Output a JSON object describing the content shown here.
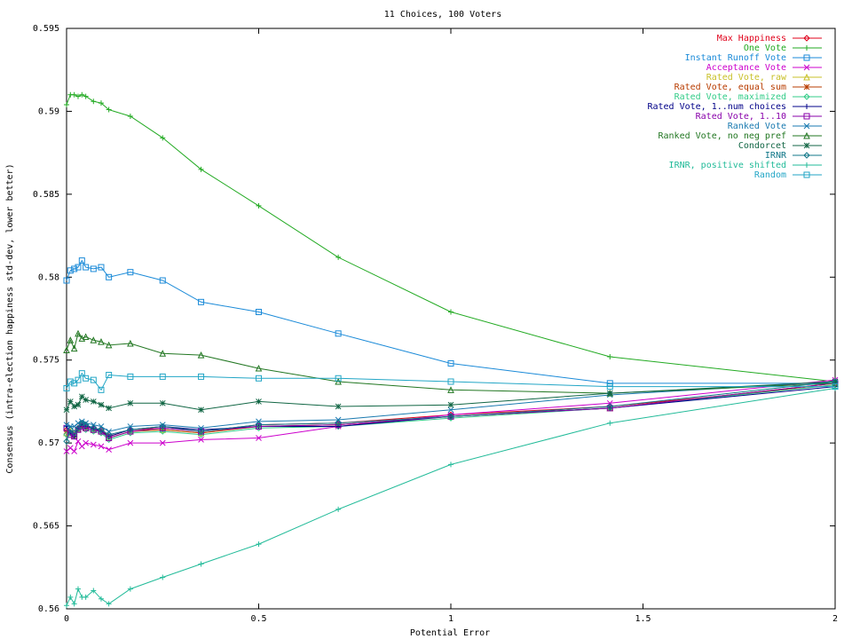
{
  "chart_data": {
    "type": "line",
    "title": "11 Choices, 100 Voters",
    "xlabel": "Potential Error",
    "ylabel": "Consensus (intra-election happiness std-dev, lower better)",
    "xlim": [
      0,
      2
    ],
    "ylim": [
      0.56,
      0.595
    ],
    "x_ticks": [
      0,
      0.5,
      1,
      1.5,
      2
    ],
    "x_tick_labels": [
      "0",
      "0.5",
      "1",
      "1.5",
      "2"
    ],
    "y_ticks": [
      0.56,
      0.565,
      0.57,
      0.575,
      0.58,
      0.585,
      0.59,
      0.595
    ],
    "y_tick_labels": [
      "0.56",
      "0.565",
      "0.57",
      "0.575",
      "0.58",
      "0.585",
      "0.59",
      "0.595"
    ],
    "grid": false,
    "legend_position": "top-right",
    "x": [
      0,
      0.01,
      0.02,
      0.03,
      0.04,
      0.05,
      0.07,
      0.09,
      0.11,
      0.166,
      0.25,
      0.35,
      0.5,
      0.707,
      1.0,
      1.414,
      2.0
    ],
    "series": [
      {
        "name": "Max Happiness",
        "color": "#e0001a",
        "marker": "diamond",
        "values": [
          0.5708,
          0.5706,
          0.5705,
          0.5708,
          0.5711,
          0.571,
          0.5709,
          0.5708,
          0.5704,
          0.5708,
          0.5709,
          0.5707,
          0.5711,
          0.5712,
          0.5717,
          0.5722,
          0.5735
        ]
      },
      {
        "name": "One Vote",
        "color": "#22aa22",
        "marker": "plus",
        "values": [
          0.5904,
          0.591,
          0.591,
          0.5909,
          0.591,
          0.5909,
          0.5906,
          0.5905,
          0.5901,
          0.5897,
          0.5884,
          0.5865,
          0.5843,
          0.5812,
          0.5779,
          0.5752,
          0.5737
        ]
      },
      {
        "name": "Instant Runoff Vote",
        "color": "#1a8ad8",
        "marker": "square",
        "values": [
          0.5798,
          0.5804,
          0.5805,
          0.5806,
          0.581,
          0.5806,
          0.5805,
          0.5806,
          0.58,
          0.5803,
          0.5798,
          0.5785,
          0.5779,
          0.5766,
          0.5748,
          0.5736,
          0.5736
        ]
      },
      {
        "name": "Acceptance Vote",
        "color": "#cc00cc",
        "marker": "x",
        "values": [
          0.5695,
          0.5697,
          0.5695,
          0.5701,
          0.5698,
          0.57,
          0.5699,
          0.5698,
          0.5696,
          0.57,
          0.57,
          0.5702,
          0.5703,
          0.571,
          0.5717,
          0.5724,
          0.5738
        ]
      },
      {
        "name": "Rated Vote, raw",
        "color": "#c8c028",
        "marker": "triangle",
        "values": [
          0.5706,
          0.5707,
          0.5705,
          0.5709,
          0.5711,
          0.5709,
          0.5708,
          0.5707,
          0.5703,
          0.5707,
          0.5708,
          0.5706,
          0.571,
          0.5711,
          0.5716,
          0.5721,
          0.5736
        ]
      },
      {
        "name": "Rated Vote, equal sum",
        "color": "#b83c00",
        "marker": "star",
        "values": [
          0.5707,
          0.5706,
          0.5704,
          0.5708,
          0.571,
          0.5709,
          0.5708,
          0.5707,
          0.5703,
          0.5707,
          0.5708,
          0.5706,
          0.571,
          0.5711,
          0.5716,
          0.5721,
          0.5736
        ]
      },
      {
        "name": "Rated Vote, maximized",
        "color": "#33cc88",
        "marker": "diamond",
        "values": [
          0.5705,
          0.5706,
          0.5704,
          0.5708,
          0.571,
          0.5708,
          0.5707,
          0.5706,
          0.5702,
          0.5706,
          0.5707,
          0.5705,
          0.5709,
          0.571,
          0.5715,
          0.5721,
          0.5735
        ]
      },
      {
        "name": "Rated Vote, 1..num choices",
        "color": "#000088",
        "marker": "plus",
        "values": [
          0.571,
          0.5706,
          0.5704,
          0.5709,
          0.5711,
          0.571,
          0.5709,
          0.5707,
          0.5704,
          0.5708,
          0.571,
          0.5708,
          0.571,
          0.571,
          0.5716,
          0.5721,
          0.5734
        ]
      },
      {
        "name": "Rated Vote, 1..10",
        "color": "#8800aa",
        "marker": "square",
        "values": [
          0.5709,
          0.5705,
          0.5704,
          0.5708,
          0.571,
          0.5709,
          0.5708,
          0.5707,
          0.5703,
          0.5707,
          0.5709,
          0.5707,
          0.571,
          0.5711,
          0.5716,
          0.5721,
          0.5736
        ]
      },
      {
        "name": "Ranked Vote",
        "color": "#1a7ab0",
        "marker": "x",
        "values": [
          0.5711,
          0.571,
          0.571,
          0.5712,
          0.5713,
          0.5712,
          0.5711,
          0.571,
          0.5707,
          0.571,
          0.5711,
          0.5709,
          0.5713,
          0.5714,
          0.572,
          0.5729,
          0.5737
        ]
      },
      {
        "name": "Ranked Vote, no neg pref",
        "color": "#227722",
        "marker": "triangle",
        "values": [
          0.5756,
          0.5762,
          0.5757,
          0.5766,
          0.5763,
          0.5764,
          0.5762,
          0.5761,
          0.5759,
          0.576,
          0.5754,
          0.5753,
          0.5745,
          0.5737,
          0.5732,
          0.573,
          0.5736
        ]
      },
      {
        "name": "Condorcet",
        "color": "#116644",
        "marker": "star",
        "values": [
          0.572,
          0.5725,
          0.5722,
          0.5723,
          0.5728,
          0.5726,
          0.5725,
          0.5723,
          0.5721,
          0.5724,
          0.5724,
          0.572,
          0.5725,
          0.5722,
          0.5723,
          0.573,
          0.5737
        ]
      },
      {
        "name": "IRNR",
        "color": "#117788",
        "marker": "diamond",
        "values": [
          0.5701,
          0.5708,
          0.5706,
          0.5709,
          0.5712,
          0.5711,
          0.5709,
          0.5708,
          0.5705,
          0.5708,
          0.571,
          0.5707,
          0.5711,
          0.5712,
          0.5716,
          0.5722,
          0.5737
        ]
      },
      {
        "name": "IRNR, positive shifted",
        "color": "#22bb99",
        "marker": "plus",
        "values": [
          0.5602,
          0.5607,
          0.5603,
          0.5612,
          0.5607,
          0.5607,
          0.5611,
          0.5606,
          0.5603,
          0.5612,
          0.5619,
          0.5627,
          0.5639,
          0.566,
          0.5687,
          0.5712,
          0.5733
        ]
      },
      {
        "name": "Random",
        "color": "#22a6c6",
        "marker": "square",
        "values": [
          0.5733,
          0.5737,
          0.5736,
          0.5738,
          0.5742,
          0.5739,
          0.5738,
          0.5732,
          0.5741,
          0.574,
          0.574,
          0.574,
          0.5739,
          0.5739,
          0.5737,
          0.5734,
          0.5734
        ]
      }
    ]
  }
}
